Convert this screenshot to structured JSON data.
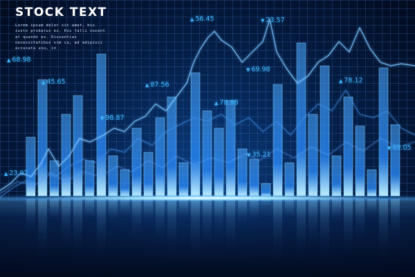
{
  "header": {
    "title": "STOCK TEXT",
    "lorem": "Lorem ipsum dolor sit amet, his iusto probatus ex. His falli vocent at quando ex. Dissentias necessitatibus vim cu, ad adipisci accusata usu, in"
  },
  "colors": {
    "background": "#020a1e",
    "accent": "#3fb6ff",
    "bar_top": "#8fd8ff",
    "bar_bottom": "#1a6fd8",
    "line": "#6fb8ff"
  },
  "tickers": [
    {
      "text": "23.97",
      "direction": "up"
    },
    {
      "text": "68.98",
      "direction": "up"
    },
    {
      "text": "45.65",
      "direction": "up"
    },
    {
      "text": "98.87",
      "direction": "down"
    },
    {
      "text": "87.56",
      "direction": "up"
    },
    {
      "text": "56.45",
      "direction": "up"
    },
    {
      "text": "78.98",
      "direction": "up"
    },
    {
      "text": "23.57",
      "direction": "down"
    },
    {
      "text": "69.98",
      "direction": "down"
    },
    {
      "text": "35.21",
      "direction": "down"
    },
    {
      "text": "78.12",
      "direction": "up"
    },
    {
      "text": "69.05",
      "direction": "down"
    }
  ]
}
